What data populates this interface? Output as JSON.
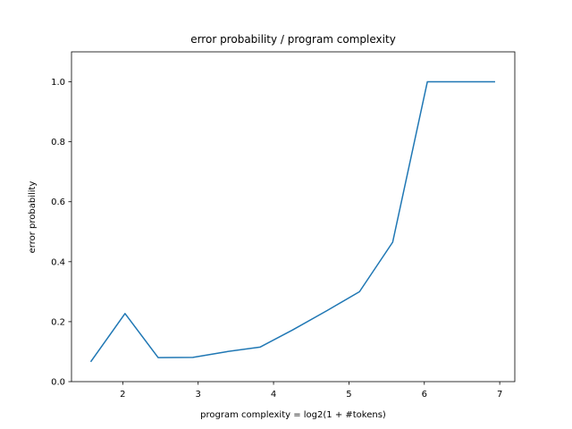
{
  "chart_data": {
    "type": "line",
    "title": "error probability / program complexity",
    "xlabel": "program complexity = log2(1 + #tokens)",
    "ylabel": "error probability",
    "xlim": [
      1.32,
      7.2
    ],
    "ylim": [
      0.0,
      1.1
    ],
    "xticks": [
      2,
      3,
      4,
      5,
      6,
      7
    ],
    "xtick_labels": [
      "2",
      "3",
      "4",
      "5",
      "6",
      "7"
    ],
    "yticks": [
      0.0,
      0.2,
      0.4,
      0.6,
      0.8,
      1.0
    ],
    "ytick_labels": [
      "0.0",
      "0.2",
      "0.4",
      "0.6",
      "0.8",
      "1.0"
    ],
    "grid": false,
    "legend": "none",
    "colors": {
      "line": "#1f77b4",
      "axes": "#000000",
      "background": "#ffffff"
    },
    "series": [
      {
        "x": [
          1.58,
          2.03,
          2.47,
          2.93,
          3.38,
          3.82,
          4.25,
          4.71,
          5.14,
          5.58,
          6.04,
          6.49,
          6.93
        ],
        "values": [
          0.068,
          0.227,
          0.08,
          0.081,
          0.1,
          0.115,
          0.172,
          0.237,
          0.3,
          0.465,
          1.0,
          1.0,
          1.0
        ]
      }
    ]
  }
}
